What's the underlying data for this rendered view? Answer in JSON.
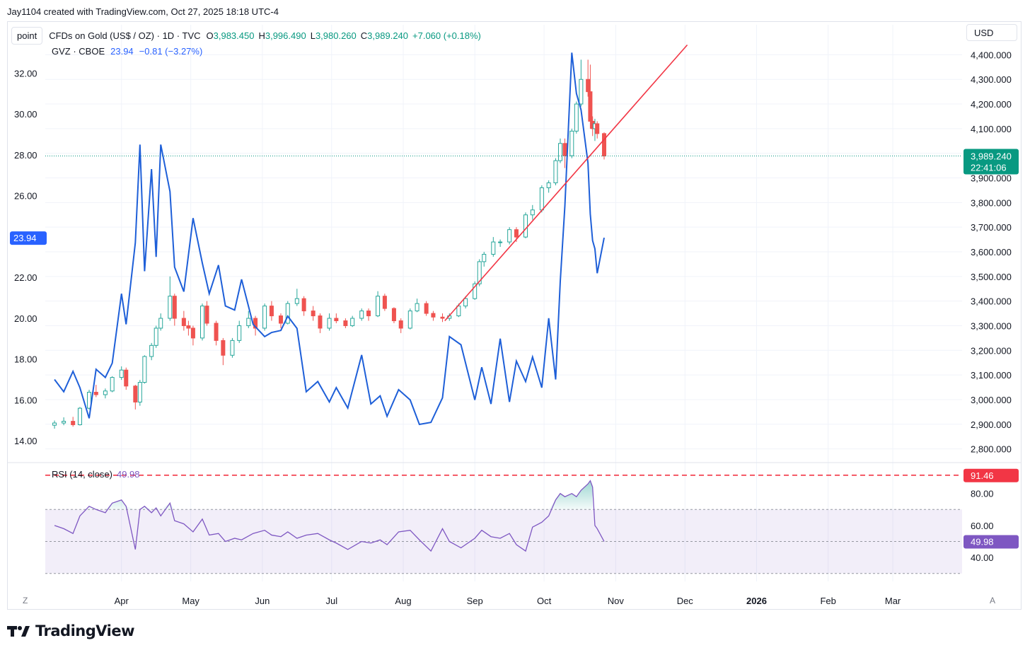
{
  "header": {
    "credit": "Jay1104 created with TradingView.com, Oct 27, 2025 18:18 UTC-4"
  },
  "legend": {
    "point_button": "point",
    "main_symbol": "CFDs on Gold (US$ / OZ) · 1D · TVC",
    "open_label": "O",
    "open": "3,983.450",
    "high_label": "H",
    "high": "3,996.490",
    "low_label": "L",
    "low": "3,980.260",
    "close_label": "C",
    "close": "3,989.240",
    "change": "+7.060 (+0.18%)",
    "overlay_symbol": "GVZ · CBOE",
    "overlay_value": "23.94",
    "overlay_change": "−0.81 (−3.27%)"
  },
  "currency_button": "USD",
  "right_badges": {
    "price": "3,989.240",
    "countdown": "22:41:06",
    "rsi_high": "91.46",
    "rsi_value": "49.98"
  },
  "left_badge": "23.94",
  "rsi_legend": {
    "label": "RSI (14, close)",
    "value": "49.98"
  },
  "scale_buttons": {
    "left": "Z",
    "right": "A"
  },
  "footer": {
    "brand": "TradingView"
  },
  "colors": {
    "up": "#26a69a",
    "down": "#ef5350",
    "gvz": "#1e5fd8",
    "trend": "#f23645",
    "rsi": "#7e57c2",
    "teal_badge": "#089981"
  },
  "chart_data": [
    {
      "type": "candlestick",
      "name": "CFDs on Gold (US$ / OZ)",
      "axis": "right",
      "ylim": [
        2750,
        4450
      ],
      "y_ticks": [
        2800,
        2900,
        3000,
        3100,
        3200,
        3300,
        3400,
        3500,
        3600,
        3700,
        3800,
        3900,
        4000,
        4100,
        4200,
        4300,
        4400
      ],
      "y_tick_labels": [
        "2,800.000",
        "2,900.000",
        "3,000.000",
        "3,100.000",
        "3,200.000",
        "3,300.000",
        "3,400.000",
        "3,500.000",
        "3,600.000",
        "3,700.000",
        "3,800.000",
        "3,900.000",
        "4,000.000",
        "4,100.000",
        "4,200.000",
        "4,300.000",
        "4,400.000"
      ],
      "ohlc_points": [
        [
          "2025-03-03",
          2896,
          2915,
          2882,
          2905
        ],
        [
          "2025-03-07",
          2905,
          2928,
          2896,
          2912
        ],
        [
          "2025-03-11",
          2912,
          2930,
          2890,
          2898
        ],
        [
          "2025-03-14",
          2898,
          2970,
          2895,
          2965
        ],
        [
          "2025-03-18",
          2965,
          3040,
          2960,
          3030
        ],
        [
          "2025-03-21",
          3030,
          3060,
          3010,
          3020
        ],
        [
          "2025-03-25",
          3020,
          3045,
          3005,
          3035
        ],
        [
          "2025-03-28",
          3035,
          3095,
          3030,
          3090
        ],
        [
          "2025-04-01",
          3090,
          3135,
          3080,
          3120
        ],
        [
          "2025-04-03",
          3120,
          3130,
          3040,
          3055
        ],
        [
          "2025-04-07",
          3055,
          3060,
          2960,
          2990
        ],
        [
          "2025-04-09",
          2990,
          3080,
          2975,
          3070
        ],
        [
          "2025-04-11",
          3070,
          3180,
          3065,
          3175
        ],
        [
          "2025-04-14",
          3175,
          3230,
          3160,
          3220
        ],
        [
          "2025-04-16",
          3220,
          3300,
          3210,
          3290
        ],
        [
          "2025-04-18",
          3290,
          3350,
          3280,
          3330
        ],
        [
          "2025-04-22",
          3330,
          3500,
          3320,
          3420
        ],
        [
          "2025-04-24",
          3420,
          3430,
          3300,
          3330
        ],
        [
          "2025-04-28",
          3330,
          3360,
          3280,
          3300
        ],
        [
          "2025-04-30",
          3300,
          3320,
          3260,
          3290
        ],
        [
          "2025-05-02",
          3290,
          3300,
          3220,
          3250
        ],
        [
          "2025-05-06",
          3250,
          3390,
          3240,
          3380
        ],
        [
          "2025-05-08",
          3380,
          3400,
          3300,
          3310
        ],
        [
          "2025-05-12",
          3310,
          3320,
          3220,
          3240
        ],
        [
          "2025-05-15",
          3240,
          3250,
          3140,
          3180
        ],
        [
          "2025-05-19",
          3180,
          3250,
          3170,
          3240
        ],
        [
          "2025-05-22",
          3240,
          3320,
          3230,
          3300
        ],
        [
          "2025-05-26",
          3300,
          3360,
          3290,
          3330
        ],
        [
          "2025-05-29",
          3330,
          3340,
          3260,
          3290
        ],
        [
          "2025-06-02",
          3290,
          3390,
          3280,
          3380
        ],
        [
          "2025-06-05",
          3380,
          3400,
          3320,
          3340
        ],
        [
          "2025-06-09",
          3340,
          3350,
          3290,
          3310
        ],
        [
          "2025-06-12",
          3310,
          3400,
          3305,
          3390
        ],
        [
          "2025-06-16",
          3390,
          3450,
          3380,
          3410
        ],
        [
          "2025-06-19",
          3410,
          3420,
          3340,
          3360
        ],
        [
          "2025-06-23",
          3360,
          3380,
          3320,
          3340
        ],
        [
          "2025-06-26",
          3340,
          3350,
          3270,
          3290
        ],
        [
          "2025-06-30",
          3290,
          3350,
          3280,
          3330
        ],
        [
          "2025-07-03",
          3330,
          3350,
          3310,
          3320
        ],
        [
          "2025-07-07",
          3320,
          3330,
          3290,
          3300
        ],
        [
          "2025-07-10",
          3300,
          3340,
          3295,
          3330
        ],
        [
          "2025-07-14",
          3330,
          3370,
          3320,
          3360
        ],
        [
          "2025-07-17",
          3360,
          3370,
          3320,
          3340
        ],
        [
          "2025-07-21",
          3340,
          3440,
          3335,
          3420
        ],
        [
          "2025-07-24",
          3420,
          3430,
          3360,
          3370
        ],
        [
          "2025-07-28",
          3370,
          3375,
          3310,
          3320
        ],
        [
          "2025-07-31",
          3320,
          3330,
          3270,
          3290
        ],
        [
          "2025-08-04",
          3290,
          3370,
          3285,
          3360
        ],
        [
          "2025-08-07",
          3360,
          3410,
          3355,
          3390
        ],
        [
          "2025-08-11",
          3390,
          3400,
          3340,
          3350
        ],
        [
          "2025-08-14",
          3350,
          3360,
          3320,
          3335
        ],
        [
          "2025-08-18",
          3335,
          3350,
          3315,
          3330
        ],
        [
          "2025-08-21",
          3330,
          3350,
          3320,
          3340
        ],
        [
          "2025-08-25",
          3340,
          3390,
          3335,
          3380
        ],
        [
          "2025-08-28",
          3380,
          3420,
          3370,
          3410
        ],
        [
          "2025-09-01",
          3410,
          3480,
          3405,
          3470
        ],
        [
          "2025-09-03",
          3470,
          3570,
          3460,
          3560
        ],
        [
          "2025-09-05",
          3560,
          3600,
          3540,
          3590
        ],
        [
          "2025-09-09",
          3590,
          3660,
          3580,
          3640
        ],
        [
          "2025-09-12",
          3640,
          3650,
          3620,
          3640
        ],
        [
          "2025-09-16",
          3640,
          3700,
          3630,
          3690
        ],
        [
          "2025-09-19",
          3690,
          3700,
          3640,
          3660
        ],
        [
          "2025-09-23",
          3660,
          3760,
          3655,
          3750
        ],
        [
          "2025-09-26",
          3750,
          3790,
          3730,
          3770
        ],
        [
          "2025-09-30",
          3770,
          3870,
          3760,
          3860
        ],
        [
          "2025-10-03",
          3860,
          3890,
          3840,
          3880
        ],
        [
          "2025-10-06",
          3880,
          3980,
          3870,
          3970
        ],
        [
          "2025-10-08",
          3970,
          4060,
          3960,
          4040
        ],
        [
          "2025-10-10",
          4040,
          4060,
          3940,
          3990
        ],
        [
          "2025-10-13",
          3990,
          4100,
          3980,
          4090
        ],
        [
          "2025-10-15",
          4090,
          4210,
          4080,
          4200
        ],
        [
          "2025-10-17",
          4200,
          4380,
          4190,
          4300
        ],
        [
          "2025-10-20",
          4300,
          4380,
          4230,
          4250
        ],
        [
          "2025-10-21",
          4250,
          4360,
          4100,
          4130
        ],
        [
          "2025-10-22",
          4130,
          4150,
          4070,
          4100
        ],
        [
          "2025-10-23",
          4100,
          4140,
          4050,
          4120
        ],
        [
          "2025-10-24",
          4120,
          4130,
          4060,
          4080
        ],
        [
          "2025-10-27",
          4080,
          4085,
          3975,
          3989
        ]
      ]
    },
    {
      "type": "line",
      "name": "GVZ · CBOE",
      "axis": "left",
      "ylim": [
        13.0,
        33.5
      ],
      "y_ticks": [
        14,
        16,
        18,
        20,
        22,
        26,
        28,
        30,
        32
      ],
      "y_tick_labels": [
        "14.00",
        "16.00",
        "18.00",
        "20.00",
        "22.00",
        "26.00",
        "28.00",
        "30.00",
        "32.00"
      ],
      "x": [
        "2025-03-03",
        "2025-03-07",
        "2025-03-11",
        "2025-03-14",
        "2025-03-18",
        "2025-03-21",
        "2025-03-25",
        "2025-03-28",
        "2025-04-01",
        "2025-04-03",
        "2025-04-07",
        "2025-04-09",
        "2025-04-11",
        "2025-04-14",
        "2025-04-16",
        "2025-04-18",
        "2025-04-22",
        "2025-04-24",
        "2025-04-28",
        "2025-05-02",
        "2025-05-06",
        "2025-05-09",
        "2025-05-13",
        "2025-05-16",
        "2025-05-20",
        "2025-05-23",
        "2025-05-28",
        "2025-06-02",
        "2025-06-05",
        "2025-06-09",
        "2025-06-12",
        "2025-06-16",
        "2025-06-20",
        "2025-06-25",
        "2025-06-30",
        "2025-07-03",
        "2025-07-08",
        "2025-07-14",
        "2025-07-18",
        "2025-07-22",
        "2025-07-25",
        "2025-07-30",
        "2025-08-04",
        "2025-08-08",
        "2025-08-13",
        "2025-08-18",
        "2025-08-21",
        "2025-08-26",
        "2025-09-01",
        "2025-09-04",
        "2025-09-08",
        "2025-09-12",
        "2025-09-16",
        "2025-09-19",
        "2025-09-23",
        "2025-09-26",
        "2025-09-30",
        "2025-10-03",
        "2025-10-06",
        "2025-10-08",
        "2025-10-10",
        "2025-10-13",
        "2025-10-15",
        "2025-10-17",
        "2025-10-20",
        "2025-10-21",
        "2025-10-22",
        "2025-10-23",
        "2025-10-24",
        "2025-10-27"
      ],
      "values": [
        17.0,
        16.4,
        17.4,
        16.6,
        15.1,
        17.5,
        17.1,
        17.8,
        21.2,
        19.7,
        23.7,
        28.5,
        22.3,
        27.3,
        23.0,
        28.5,
        26.2,
        22.5,
        21.3,
        24.9,
        22.7,
        21.2,
        22.6,
        20.6,
        20.4,
        21.9,
        19.7,
        19.1,
        19.3,
        19.4,
        20.1,
        19.5,
        16.4,
        16.9,
        15.9,
        16.6,
        15.6,
        18.2,
        15.8,
        16.2,
        15.2,
        16.5,
        16.0,
        14.8,
        14.9,
        16.1,
        19.1,
        18.7,
        16.0,
        17.6,
        15.8,
        19.0,
        15.9,
        17.9,
        16.9,
        18.1,
        16.6,
        20.0,
        17.0,
        21.8,
        25.5,
        33.0,
        31.0,
        30.2,
        27.6,
        25.1,
        23.8,
        23.4,
        22.2,
        23.94
      ]
    },
    {
      "type": "line",
      "name": "Trend line",
      "axis": "right",
      "x": [
        "2025-08-19",
        "2025-12-02"
      ],
      "values": [
        3320,
        4440
      ]
    },
    {
      "type": "line",
      "name": "RSI (14, close)",
      "ylim": [
        25,
        98
      ],
      "y_ticks": [
        40,
        60,
        80
      ],
      "y_tick_labels": [
        "40.00",
        "60.00",
        "80.00"
      ],
      "bands": {
        "upper": 70,
        "middle": 50,
        "lower": 30
      },
      "reference_line": 91.46,
      "x": [
        "2025-03-03",
        "2025-03-07",
        "2025-03-11",
        "2025-03-14",
        "2025-03-18",
        "2025-03-21",
        "2025-03-25",
        "2025-03-28",
        "2025-04-01",
        "2025-04-03",
        "2025-04-07",
        "2025-04-09",
        "2025-04-11",
        "2025-04-14",
        "2025-04-16",
        "2025-04-18",
        "2025-04-22",
        "2025-04-24",
        "2025-04-28",
        "2025-05-02",
        "2025-05-06",
        "2025-05-09",
        "2025-05-13",
        "2025-05-16",
        "2025-05-20",
        "2025-05-23",
        "2025-05-28",
        "2025-06-02",
        "2025-06-05",
        "2025-06-09",
        "2025-06-12",
        "2025-06-16",
        "2025-06-20",
        "2025-06-25",
        "2025-06-30",
        "2025-07-03",
        "2025-07-08",
        "2025-07-14",
        "2025-07-18",
        "2025-07-22",
        "2025-07-25",
        "2025-07-30",
        "2025-08-04",
        "2025-08-08",
        "2025-08-13",
        "2025-08-18",
        "2025-08-21",
        "2025-08-26",
        "2025-09-01",
        "2025-09-04",
        "2025-09-08",
        "2025-09-12",
        "2025-09-16",
        "2025-09-19",
        "2025-09-23",
        "2025-09-26",
        "2025-09-30",
        "2025-10-03",
        "2025-10-06",
        "2025-10-08",
        "2025-10-10",
        "2025-10-13",
        "2025-10-15",
        "2025-10-17",
        "2025-10-20",
        "2025-10-21",
        "2025-10-22",
        "2025-10-23",
        "2025-10-24",
        "2025-10-27"
      ],
      "values": [
        60,
        58,
        55,
        66,
        72,
        70,
        68,
        74,
        76,
        72,
        45,
        70,
        72,
        68,
        71,
        66,
        74,
        63,
        61,
        56,
        64,
        54,
        55,
        50,
        52,
        51,
        55,
        57,
        54,
        53,
        56,
        52,
        54,
        55,
        51,
        49,
        45,
        50,
        49,
        51,
        48,
        56,
        57,
        51,
        44,
        58,
        50,
        46,
        52,
        57,
        53,
        52,
        55,
        48,
        44,
        59,
        62,
        66,
        76,
        80,
        78,
        80,
        78,
        82,
        86,
        88,
        84,
        60,
        58,
        49.98
      ]
    }
  ],
  "x_axis": {
    "labels": [
      "Apr",
      "May",
      "Jun",
      "Jul",
      "Aug",
      "Sep",
      "Oct",
      "Nov",
      "Dec",
      "2026",
      "Feb",
      "Mar"
    ]
  }
}
